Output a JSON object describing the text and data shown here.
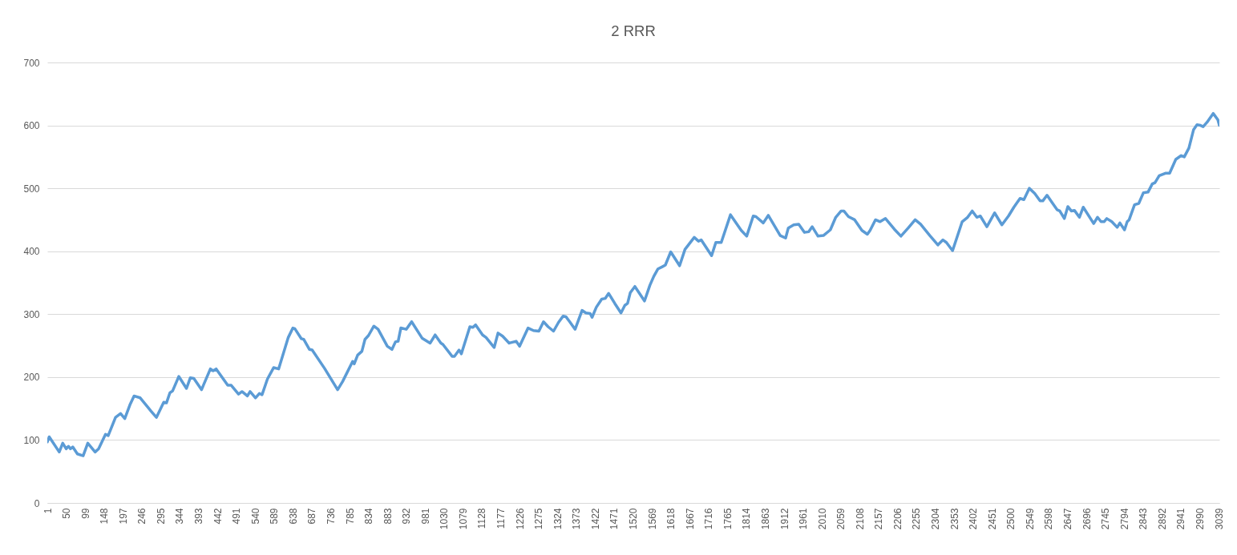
{
  "chart_data": {
    "type": "line",
    "title": "2 RRR",
    "x": [
      1,
      6,
      32,
      41,
      50,
      56,
      61,
      67,
      79,
      94,
      106,
      125,
      134,
      152,
      159,
      178,
      191,
      202,
      216,
      226,
      242,
      270,
      284,
      303,
      310,
      319,
      326,
      342,
      362,
      372,
      381,
      401,
      424,
      431,
      439,
      469,
      478,
      497,
      506,
      520,
      527,
      541,
      551,
      558,
      572,
      588,
      601,
      626,
      638,
      643,
      660,
      666,
      681,
      688,
      720,
      754,
      767,
      793,
      797,
      806,
      817,
      825,
      834,
      848,
      859,
      883,
      895,
      904,
      911,
      918,
      932,
      946,
      973,
      994,
      1007,
      1022,
      1027,
      1051,
      1057,
      1069,
      1075,
      1097,
      1105,
      1112,
      1130,
      1139,
      1160,
      1170,
      1182,
      1199,
      1217,
      1226,
      1248,
      1262,
      1276,
      1288,
      1300,
      1314,
      1327,
      1339,
      1346,
      1356,
      1370,
      1388,
      1398,
      1409,
      1414,
      1425,
      1439,
      1448,
      1457,
      1473,
      1489,
      1499,
      1506,
      1513,
      1525,
      1550,
      1564,
      1574,
      1585,
      1595,
      1604,
      1618,
      1641,
      1655,
      1665,
      1679,
      1690,
      1697,
      1724,
      1735,
      1749,
      1773,
      1801,
      1815,
      1832,
      1839,
      1858,
      1871,
      1902,
      1916,
      1923,
      1937,
      1950,
      1965,
      1976,
      1985,
      2000,
      2014,
      2032,
      2046,
      2060,
      2067,
      2079,
      2095,
      2114,
      2128,
      2135,
      2149,
      2161,
      2175,
      2198,
      2215,
      2234,
      2252,
      2266,
      2290,
      2311,
      2324,
      2333,
      2349,
      2374,
      2388,
      2400,
      2412,
      2421,
      2438,
      2458,
      2477,
      2494,
      2508,
      2524,
      2534,
      2548,
      2562,
      2576,
      2583,
      2594,
      2620,
      2627,
      2639,
      2648,
      2657,
      2665,
      2678,
      2688,
      2715,
      2725,
      2734,
      2742,
      2749,
      2762,
      2776,
      2783,
      2795,
      2802,
      2807,
      2821,
      2832,
      2844,
      2856,
      2867,
      2874,
      2885,
      2901,
      2912,
      2928,
      2942,
      2950,
      2962,
      2974,
      2983,
      2992,
      2999,
      3009,
      3025,
      3037,
      3041
    ],
    "series": [
      {
        "color": "#5b9bd5",
        "values": [
          97,
          105,
          81,
          95,
          86,
          90,
          86,
          89,
          78,
          75,
          95,
          81,
          86,
          109,
          107,
          136,
          142,
          134,
          157,
          170,
          167,
          146,
          136,
          160,
          159,
          175,
          178,
          201,
          182,
          199,
          198,
          180,
          213,
          210,
          213,
          187,
          187,
          173,
          177,
          170,
          177,
          167,
          174,
          172,
          197,
          215,
          213,
          263,
          278,
          277,
          261,
          260,
          244,
          243,
          214,
          180,
          193,
          225,
          221,
          235,
          241,
          260,
          266,
          281,
          276,
          249,
          244,
          256,
          257,
          278,
          276,
          288,
          262,
          254,
          267,
          254,
          252,
          233,
          233,
          243,
          237,
          280,
          279,
          283,
          267,
          263,
          247,
          270,
          265,
          254,
          257,
          249,
          278,
          274,
          273,
          288,
          280,
          273,
          287,
          297,
          296,
          288,
          276,
          306,
          302,
          301,
          295,
          311,
          324,
          325,
          333,
          317,
          302,
          314,
          317,
          334,
          344,
          321,
          346,
          360,
          372,
          375,
          378,
          399,
          377,
          403,
          411,
          422,
          416,
          418,
          393,
          414,
          414,
          458,
          433,
          424,
          456,
          455,
          445,
          457,
          425,
          421,
          437,
          442,
          443,
          430,
          431,
          439,
          424,
          425,
          434,
          454,
          464,
          464,
          455,
          450,
          433,
          427,
          433,
          450,
          447,
          452,
          435,
          424,
          437,
          450,
          443,
          425,
          410,
          418,
          414,
          401,
          447,
          454,
          464,
          454,
          456,
          439,
          461,
          442,
          456,
          470,
          484,
          482,
          500,
          492,
          480,
          480,
          489,
          466,
          464,
          452,
          471,
          464,
          465,
          454,
          470,
          444,
          454,
          447,
          447,
          452,
          447,
          438,
          445,
          434,
          447,
          450,
          474,
          476,
          493,
          494,
          507,
          509,
          520,
          524,
          524,
          546,
          552,
          550,
          564,
          593,
          601,
          600,
          598,
          605,
          619,
          609,
          600
        ]
      }
    ],
    "xlim": [
      1,
      3041
    ],
    "xticks": [
      1,
      50,
      99,
      148,
      197,
      246,
      295,
      344,
      393,
      442,
      491,
      540,
      589,
      638,
      687,
      736,
      785,
      834,
      883,
      932,
      981,
      1030,
      1079,
      1128,
      1177,
      1226,
      1275,
      1324,
      1373,
      1422,
      1471,
      1520,
      1569,
      1618,
      1667,
      1716,
      1765,
      1814,
      1863,
      1912,
      1961,
      2010,
      2059,
      2108,
      2157,
      2206,
      2255,
      2304,
      2353,
      2402,
      2451,
      2500,
      2549,
      2598,
      2647,
      2696,
      2745,
      2794,
      2843,
      2892,
      2941,
      2990,
      3039
    ],
    "ylim": [
      0,
      700
    ],
    "yticks": [
      0,
      100,
      200,
      300,
      400,
      500,
      600,
      700
    ],
    "grid": "y"
  }
}
